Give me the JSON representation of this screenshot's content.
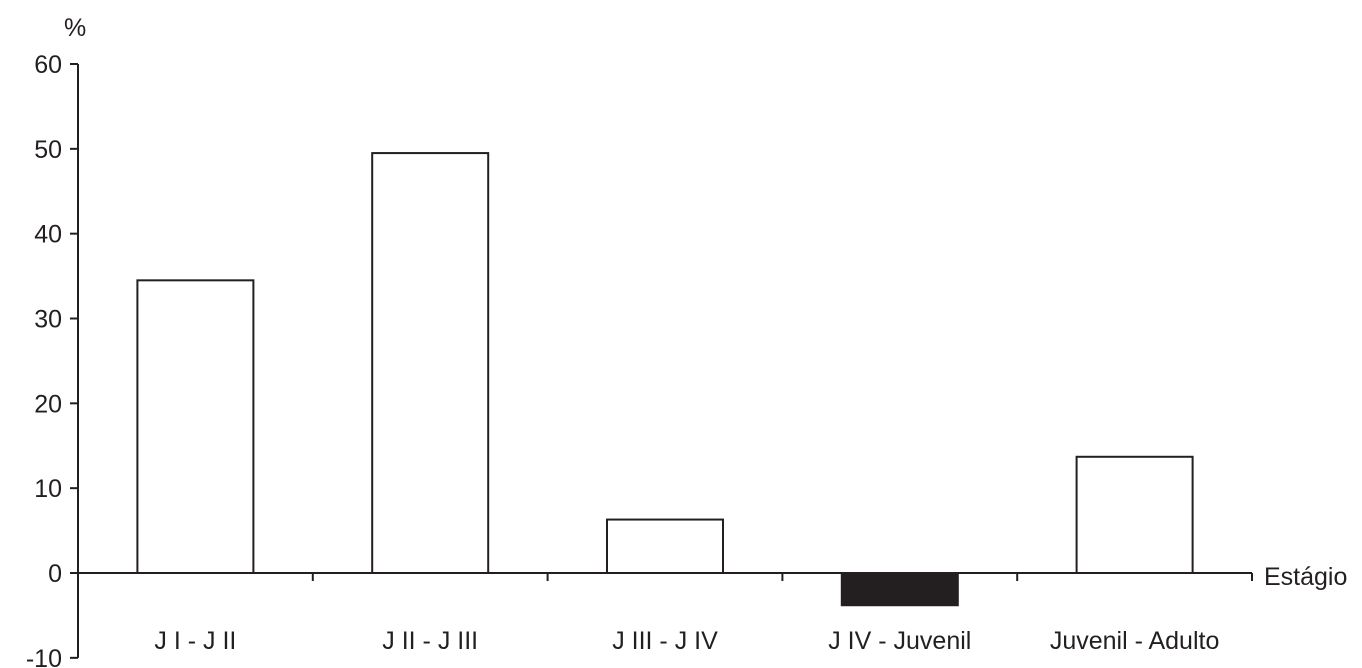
{
  "chart_data": {
    "type": "bar",
    "title": "",
    "ylabel": "%",
    "xlabel": "Estágio",
    "categories": [
      "J I - J II",
      "J II - J III",
      "J III - J IV",
      "J IV - Juvenil",
      "Juvenil - Adulto"
    ],
    "values": [
      34.5,
      49.5,
      6.3,
      -3.8,
      13.7
    ],
    "ylim": [
      -10,
      60
    ],
    "yticks": [
      "-10",
      "0",
      "10",
      "20",
      "30",
      "40",
      "50",
      "60"
    ],
    "grid": false,
    "legend": "none",
    "colors": {
      "positive_fill": "#ffffff",
      "negative_fill": "#231f20",
      "stroke": "#231f20"
    }
  }
}
